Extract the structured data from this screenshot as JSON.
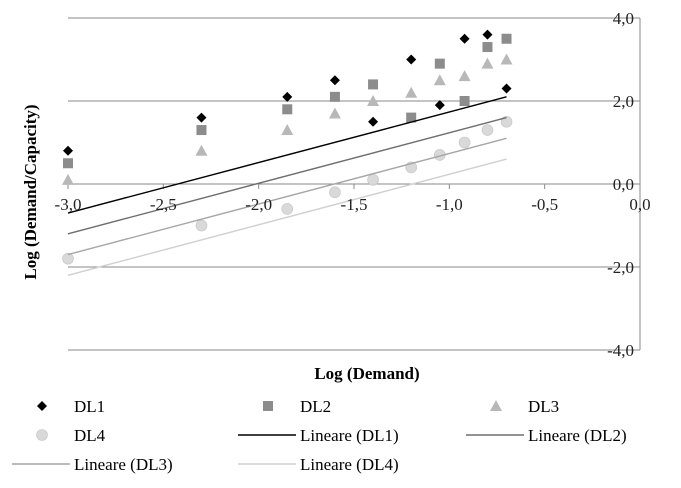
{
  "chart_data": {
    "type": "scatter",
    "title": "",
    "xlabel": "Log (Demand)",
    "ylabel": "Log (Demand/Capacity)",
    "xlim": [
      -3.0,
      0.0
    ],
    "ylim": [
      -4.0,
      4.0
    ],
    "xticks": [
      -3.0,
      -2.5,
      -2.0,
      -1.5,
      -1.0,
      -0.5,
      0.0
    ],
    "yticks": [
      -4.0,
      -2.0,
      0.0,
      2.0,
      4.0
    ],
    "xtick_labels": [
      "-3,0",
      "-2,5",
      "-2,0",
      "-1,5",
      "-1,0",
      "-0,5",
      "0,0"
    ],
    "ytick_labels": [
      "-4,0",
      "-2,0",
      "0,0",
      "2,0",
      "4,0"
    ],
    "grid": "horizontal",
    "legend_position": "bottom",
    "x": [
      -3.0,
      -2.3,
      -1.85,
      -1.6,
      -1.4,
      -1.2,
      -1.05,
      -0.92,
      -0.8,
      -0.7
    ],
    "series": [
      {
        "name": "DL1",
        "marker": "diamond",
        "color": "#000000",
        "values": [
          0.8,
          1.6,
          2.1,
          2.5,
          1.5,
          3.0,
          1.9,
          3.5,
          3.6,
          2.3
        ]
      },
      {
        "name": "DL2",
        "marker": "square",
        "color": "#8c8c8c",
        "values": [
          0.5,
          1.3,
          1.8,
          2.1,
          2.4,
          1.6,
          2.9,
          2.0,
          3.3,
          3.5
        ]
      },
      {
        "name": "DL3",
        "marker": "triangle",
        "color": "#b8b8b8",
        "values": [
          0.1,
          0.8,
          1.3,
          1.7,
          2.0,
          2.2,
          2.5,
          2.6,
          2.9,
          3.0
        ]
      },
      {
        "name": "DL4",
        "marker": "circle",
        "color": "#d9d9d9",
        "values": [
          -1.8,
          -1.0,
          -0.6,
          -0.2,
          0.1,
          0.4,
          0.7,
          1.0,
          1.3,
          1.5
        ]
      }
    ],
    "trendlines": [
      {
        "name": "Lineare (DL1)",
        "color": "#000000",
        "points": [
          [
            -3.0,
            -0.7
          ],
          [
            -0.7,
            2.1
          ]
        ]
      },
      {
        "name": "Lineare (DL2)",
        "color": "#6e6e6e",
        "points": [
          [
            -3.0,
            -1.2
          ],
          [
            -0.7,
            1.6
          ]
        ]
      },
      {
        "name": "Lineare (DL3)",
        "color": "#a6a6a6",
        "points": [
          [
            -3.0,
            -1.7
          ],
          [
            -0.7,
            1.1
          ]
        ]
      },
      {
        "name": "Lineare (DL4)",
        "color": "#d0d0d0",
        "points": [
          [
            -3.0,
            -2.2
          ],
          [
            -0.7,
            0.6
          ]
        ]
      }
    ]
  }
}
